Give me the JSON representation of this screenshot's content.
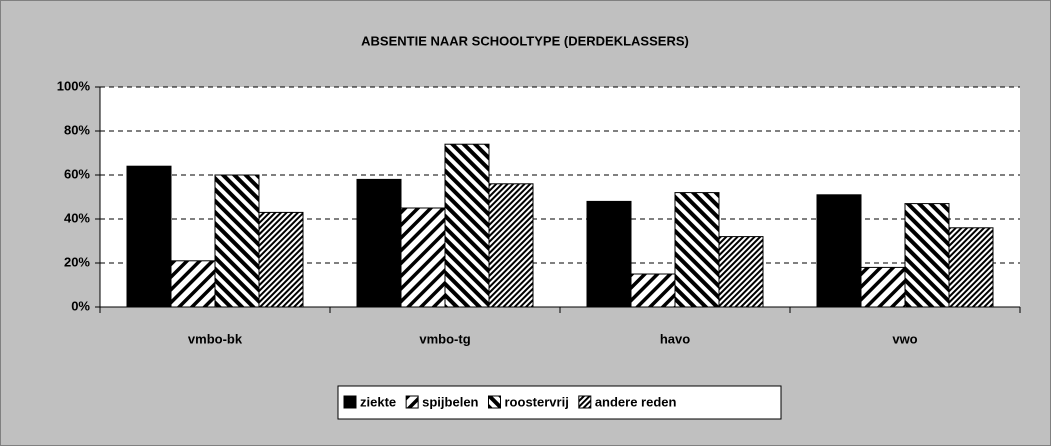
{
  "chart_data": {
    "type": "bar",
    "title": "ABSENTIE NAAR SCHOOLTYPE (DERDEKLASSERS)",
    "categories": [
      "vmbo-bk",
      "vmbo-tg",
      "havo",
      "vwo"
    ],
    "series": [
      {
        "name": "ziekte",
        "color": "#000000",
        "pattern": "solid",
        "values": [
          64,
          58,
          48,
          51
        ]
      },
      {
        "name": "spijbelen",
        "color": "#000000",
        "pattern": "diagonal-wide",
        "values": [
          21,
          45,
          15,
          18
        ]
      },
      {
        "name": "roostervrij",
        "color": "#000000",
        "pattern": "diagonal-back",
        "values": [
          60,
          74,
          52,
          47
        ]
      },
      {
        "name": "andere reden",
        "color": "#000000",
        "pattern": "diagonal-dense",
        "values": [
          43,
          56,
          32,
          36
        ]
      }
    ],
    "ylim": [
      0,
      100
    ],
    "yticks": [
      {
        "value": 0,
        "label": "0%"
      },
      {
        "value": 20,
        "label": "20%"
      },
      {
        "value": 40,
        "label": "40%"
      },
      {
        "value": 60,
        "label": "60%"
      },
      {
        "value": 80,
        "label": "80%"
      },
      {
        "value": 100,
        "label": "100%"
      }
    ],
    "grid": true,
    "legend": "bottom"
  }
}
